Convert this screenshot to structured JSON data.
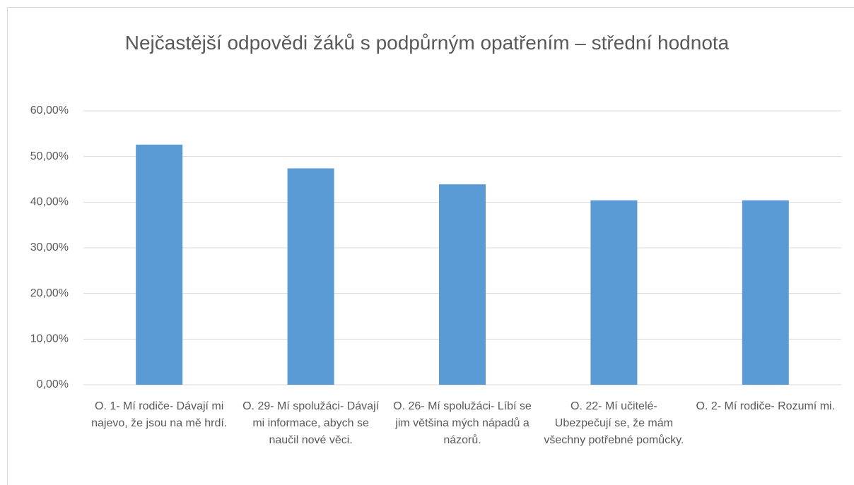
{
  "chart_data": {
    "type": "bar",
    "title": "Nejčastější odpovědi žáků s podpůrným opatřením – střední hodnota",
    "categories": [
      "O. 1- Mí rodiče- Dávají mi najevo, že jsou na mě hrdí.",
      "O. 29- Mí spolužáci- Dávají mi informace, abych se naučil nové věci.",
      "O. 26- Mí spolužáci- Líbí se jim většina mých nápadů a názorů.",
      "O. 22- Mí učitelé- Ubezpečují se, že mám všechny potřebné pomůcky.",
      "O. 2- Mí rodiče- Rozumí mi."
    ],
    "values": [
      52.6,
      47.4,
      43.9,
      40.4,
      40.4
    ],
    "color": "#5b9bd5",
    "ylim": [
      0,
      60
    ],
    "yticks": [
      {
        "value": 0,
        "label": "0,00%"
      },
      {
        "value": 10,
        "label": "10,00%"
      },
      {
        "value": 20,
        "label": "20,00%"
      },
      {
        "value": 30,
        "label": "30,00%"
      },
      {
        "value": 40,
        "label": "40,00%"
      },
      {
        "value": 50,
        "label": "50,00%"
      },
      {
        "value": 60,
        "label": "60,00%"
      }
    ],
    "grid": true
  }
}
